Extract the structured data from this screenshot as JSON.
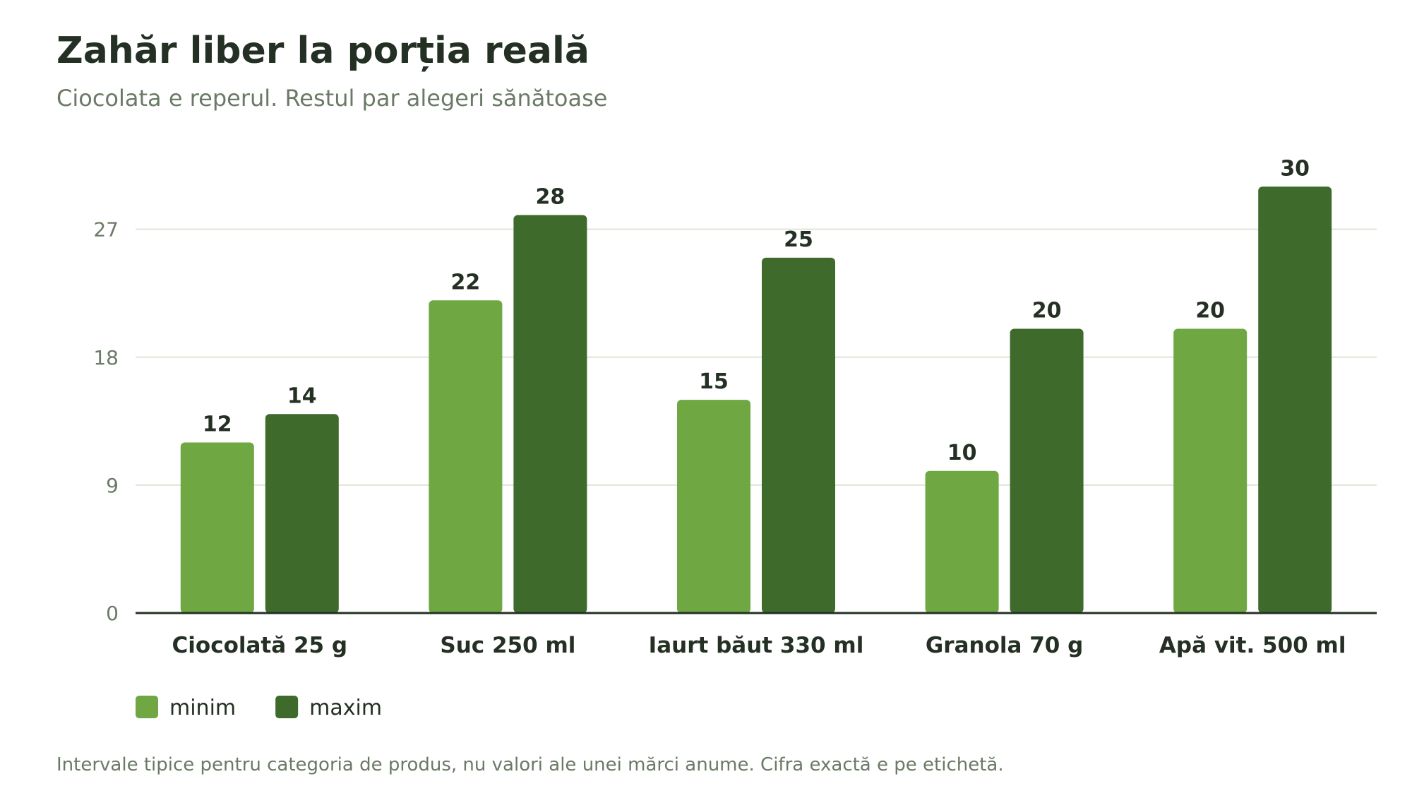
{
  "chart_data": {
    "type": "bar",
    "title": "Zahăr liber la porția reală",
    "subtitle": "Ciocolata e reperul. Restul par alegeri sănătoase",
    "categories": [
      "Ciocolată 25 g",
      "Suc 250 ml",
      "Iaurt băut 330 ml",
      "Granola 70 g",
      "Apă vit. 500 ml"
    ],
    "series": [
      {
        "name": "minim",
        "values": [
          12,
          22,
          15,
          10,
          20
        ],
        "color": "#6fa842"
      },
      {
        "name": "maxim",
        "values": [
          14,
          28,
          25,
          20,
          30
        ],
        "color": "#3e6b2b"
      }
    ],
    "yticks": [
      0,
      9,
      18,
      27
    ],
    "ylim": [
      0,
      32
    ],
    "grid": true,
    "legend_placement": "bottom-left",
    "footnote": "Intervale tipice pentru categoria de produs, nu valori ale unei mărci anume. Cifra exactă e pe etichetă."
  }
}
